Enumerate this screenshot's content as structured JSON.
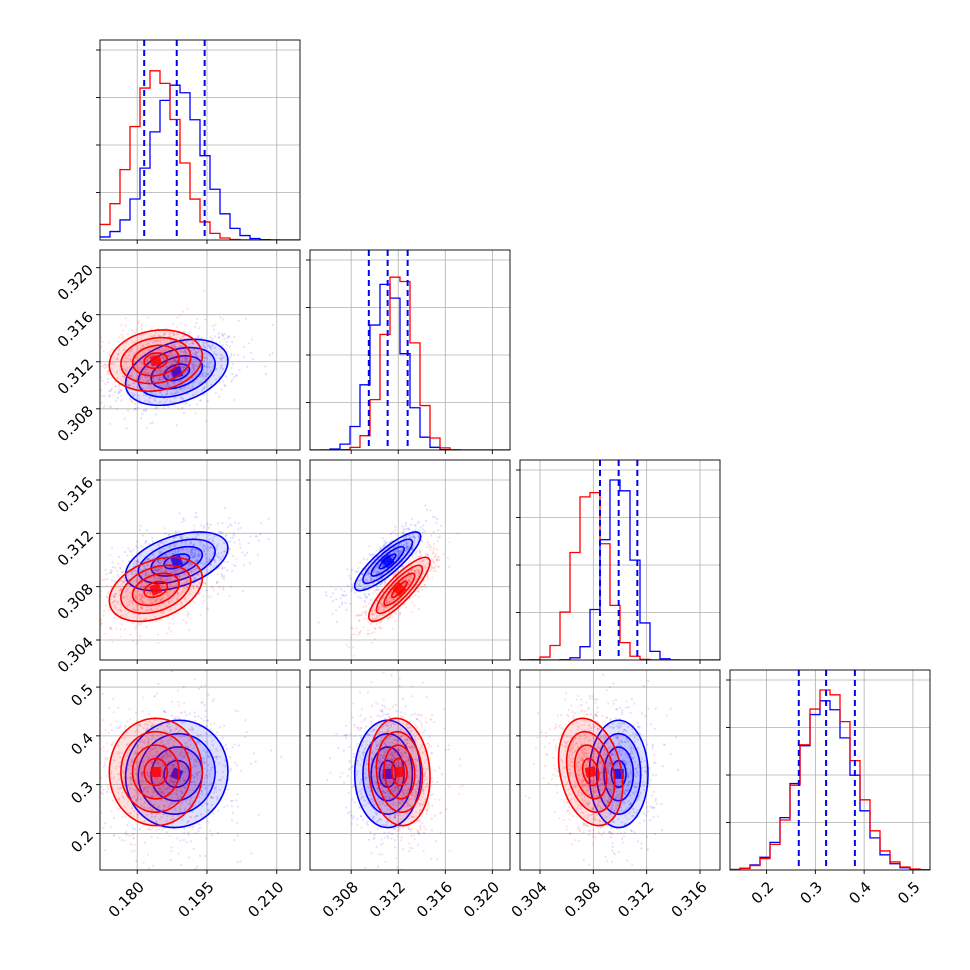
{
  "colors": {
    "series_a": "#0000ff",
    "series_b": "#ff0000",
    "grid": "#b0b0b0",
    "axis": "#000000"
  },
  "chart_data": {
    "type": "corner",
    "grid": true,
    "params": [
      {
        "id": "p0",
        "range": [
          0.172,
          0.215
        ],
        "ticks": [
          0.18,
          0.195,
          0.21
        ],
        "tick_labels": [
          "0.180",
          "0.195",
          "0.210"
        ]
      },
      {
        "id": "p1",
        "range": [
          0.3045,
          0.3215
        ],
        "ticks": [
          0.308,
          0.312,
          0.316,
          0.32
        ],
        "tick_labels": [
          "0.308",
          "0.312",
          "0.316",
          "0.320"
        ]
      },
      {
        "id": "p2",
        "range": [
          0.3025,
          0.3175
        ],
        "ticks": [
          0.304,
          0.308,
          0.312,
          0.316
        ],
        "tick_labels": [
          "0.304",
          "0.308",
          "0.312",
          "0.316"
        ]
      },
      {
        "id": "p3",
        "range": [
          0.125,
          0.535
        ],
        "ticks": [
          0.2,
          0.3,
          0.4,
          0.5
        ],
        "tick_labels": [
          "0.2",
          "0.3",
          "0.4",
          "0.5"
        ]
      }
    ],
    "series": [
      {
        "color": "#0000ff",
        "mean": [
          0.1885,
          0.3111,
          0.3099,
          0.322
        ],
        "sd": [
          0.0055,
          0.0014,
          0.0011,
          0.055
        ],
        "corr": [
          [
            1,
            0.35,
            0.45,
            0.05
          ],
          [
            0.35,
            1,
            0.85,
            0.0
          ],
          [
            0.45,
            0.85,
            1,
            0.0
          ],
          [
            0.05,
            0.0,
            0.0,
            1
          ]
        ],
        "quantiles": [
          [
            0.1815,
            0.1885,
            0.1945
          ],
          [
            0.3095,
            0.3111,
            0.3128
          ],
          [
            0.3085,
            0.3099,
            0.3113
          ],
          [
            0.266,
            0.322,
            0.381
          ]
        ],
        "hist_max": [
          0.86,
          0.92,
          1.0,
          0.94
        ]
      },
      {
        "color": "#ff0000",
        "mean": [
          0.184,
          0.3121,
          0.3078,
          0.326
        ],
        "sd": [
          0.005,
          0.0013,
          0.0012,
          0.055
        ],
        "corr": [
          [
            1,
            0.15,
            0.35,
            0.0
          ],
          [
            0.15,
            1,
            0.85,
            -0.1
          ],
          [
            0.35,
            0.85,
            1,
            -0.25
          ],
          [
            0.0,
            -0.1,
            -0.25,
            1
          ]
        ],
        "hist_max": [
          0.94,
          0.96,
          0.93,
          1.0
        ]
      }
    ]
  }
}
